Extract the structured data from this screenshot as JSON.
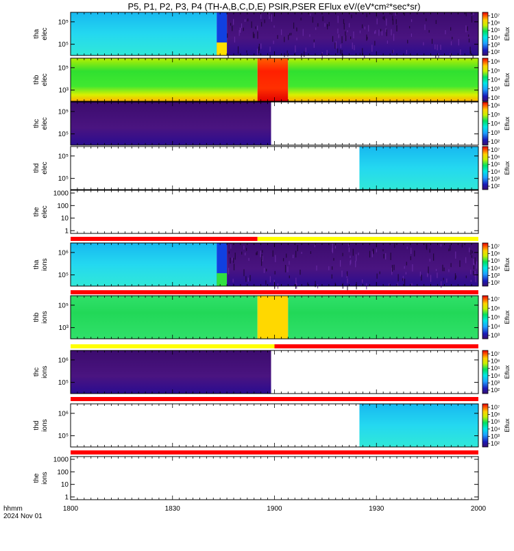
{
  "title": "P5, P1, P2, P3, P4 (TH-A,B,C,D,E) PSIR,PSER EFlux eV/(eV*cm²*sec*sr)",
  "time_axis": {
    "label_line1": "hhmm",
    "label_line2": "2024 Nov 01",
    "ticks": [
      "1800",
      "1830",
      "1900",
      "1930",
      "2000"
    ]
  },
  "colorbar_label": "Eflux",
  "chart_data": {
    "type": "heatmap",
    "x_unit": "UT hhmm",
    "xlim": [
      "18:00",
      "20:00"
    ],
    "panels": [
      {
        "label": [
          "tha",
          "elec"
        ],
        "yticks": [
          "10⁵",
          "10⁵"
        ],
        "cbticks": [
          "10⁷",
          "10⁶",
          "10⁵",
          "10⁴",
          "10³",
          "10²"
        ],
        "colorbar": "Eflux",
        "segments": [
          {
            "from": "18:00",
            "to": "18:43",
            "level": "high (cyan)"
          },
          {
            "from": "18:43",
            "to": "18:46",
            "level": "mixed"
          },
          {
            "from": "18:46",
            "to": "20:00",
            "level": "low (purple noise)"
          }
        ]
      },
      {
        "label": [
          "thb",
          "elec"
        ],
        "yticks": [
          "10⁵",
          "10³"
        ],
        "cbticks": [
          "10⁶",
          "10⁵",
          "10⁴",
          "10³",
          "10²"
        ],
        "colorbar": "Eflux",
        "segments": [
          {
            "from": "18:00",
            "to": "18:55",
            "level": "medium (green)"
          },
          {
            "from": "18:55",
            "to": "19:04",
            "level": "very high (red)"
          },
          {
            "from": "19:04",
            "to": "20:00",
            "level": "medium (yellow-green)"
          }
        ]
      },
      {
        "label": [
          "thc",
          "elec"
        ],
        "yticks": [
          "10⁵",
          "10⁵"
        ],
        "cbticks": [
          "10⁶",
          "10⁵",
          "10⁴",
          "10³",
          "10²"
        ],
        "colorbar": "Eflux",
        "segments": [
          {
            "from": "18:00",
            "to": "18:59",
            "level": "low (purple)"
          }
        ]
      },
      {
        "label": [
          "thd",
          "elec"
        ],
        "yticks": [
          "10⁵",
          "10⁵"
        ],
        "cbticks": [
          "10⁷",
          "10⁶",
          "10⁵",
          "10⁴",
          "10³",
          "10²"
        ],
        "colorbar": "Eflux",
        "segments": [
          {
            "from": "19:25",
            "to": "20:00",
            "level": "high (cyan)"
          }
        ]
      },
      {
        "label": [
          "the",
          "elec"
        ],
        "yticks": [
          "1000",
          "100",
          "10",
          "1"
        ],
        "colorbar": null,
        "segments": []
      },
      {
        "label": [
          "tha",
          "ions"
        ],
        "yticks": [
          "10⁶",
          "10⁵"
        ],
        "cbticks": [
          "10⁷",
          "10⁶",
          "10⁵",
          "10⁴",
          "10³",
          "10²"
        ],
        "colorbar": "Eflux",
        "segments": [
          {
            "from": "18:00",
            "to": "18:43",
            "level": "high (cyan)"
          },
          {
            "from": "18:43",
            "to": "18:46",
            "level": "mixed"
          },
          {
            "from": "18:46",
            "to": "20:00",
            "level": "low (purple noise)"
          }
        ]
      },
      {
        "label": [
          "thb",
          "ions"
        ],
        "yticks": [
          "10⁵",
          "10³"
        ],
        "cbticks": [
          "10⁷",
          "10⁶",
          "10⁵",
          "10⁴",
          "10³"
        ],
        "colorbar": "Eflux",
        "segments": [
          {
            "from": "18:00",
            "to": "18:55",
            "level": "medium (green)"
          },
          {
            "from": "18:55",
            "to": "19:04",
            "level": "high (yellow)"
          },
          {
            "from": "19:04",
            "to": "20:00",
            "level": "medium (green)"
          }
        ]
      },
      {
        "label": [
          "thc",
          "ions"
        ],
        "yticks": [
          "10⁶",
          "10⁵"
        ],
        "cbticks": [
          "10⁷",
          "10⁶",
          "10⁵",
          "10⁴",
          "10³",
          "10²"
        ],
        "colorbar": "Eflux",
        "segments": [
          {
            "from": "18:00",
            "to": "18:59",
            "level": "low (purple)"
          }
        ]
      },
      {
        "label": [
          "thd",
          "ions"
        ],
        "yticks": [
          "10⁶",
          "10⁵"
        ],
        "cbticks": [
          "10⁷",
          "10⁶",
          "10⁵",
          "10⁴",
          "10³",
          "10²"
        ],
        "colorbar": "Eflux",
        "segments": [
          {
            "from": "19:25",
            "to": "20:00",
            "level": "high (cyan)"
          }
        ]
      },
      {
        "label": [
          "the",
          "ions"
        ],
        "yticks": [
          "1000",
          "100",
          "10",
          "1"
        ],
        "colorbar": null,
        "segments": []
      }
    ],
    "mode_bars": [
      {
        "after_panel": 4,
        "segments": [
          {
            "from": "18:00",
            "to": "18:55",
            "color": "#ff0000"
          },
          {
            "from": "18:55",
            "to": "20:00",
            "color": "#ffff00"
          }
        ]
      },
      {
        "after_panel": 5,
        "segments": [
          {
            "from": "18:00",
            "to": "20:00",
            "color": "#ff0000"
          }
        ]
      },
      {
        "after_panel": 6,
        "segments": [
          {
            "from": "18:00",
            "to": "19:00",
            "color": "#ffff00"
          },
          {
            "from": "19:00",
            "to": "20:00",
            "color": "#ff0000"
          }
        ]
      },
      {
        "after_panel": 7,
        "segments": [
          {
            "from": "18:00",
            "to": "20:00",
            "color": "#ff0000"
          }
        ]
      },
      {
        "after_panel": 8,
        "segments": [
          {
            "from": "18:00",
            "to": "20:00",
            "color": "#ff0000"
          }
        ]
      }
    ]
  }
}
